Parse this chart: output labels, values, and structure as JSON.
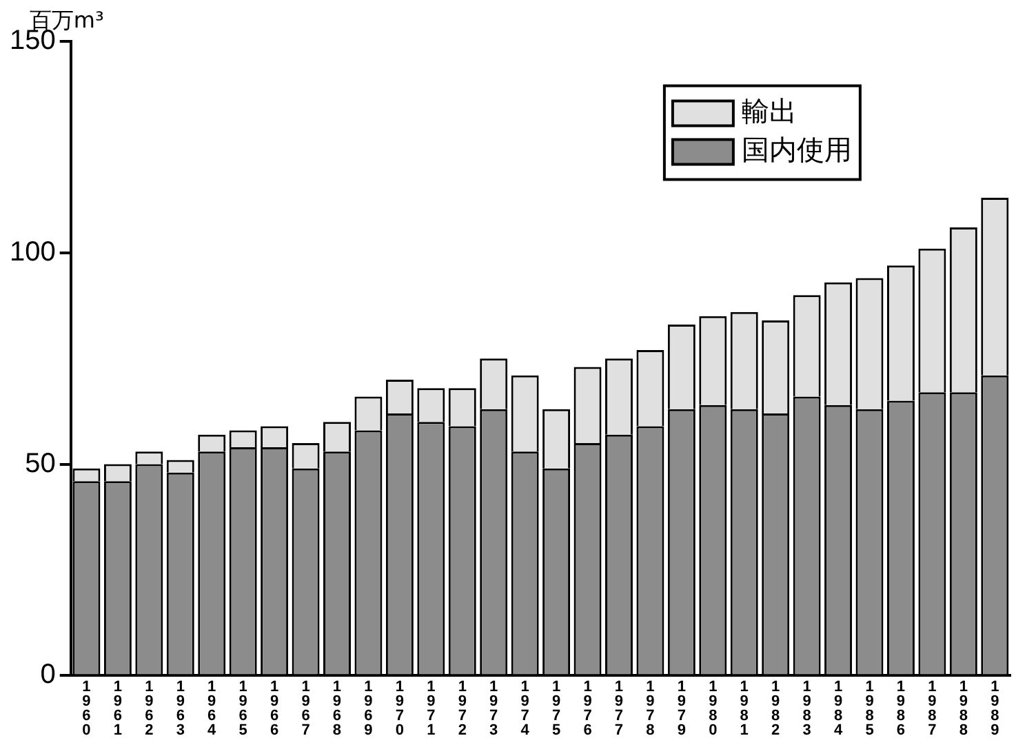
{
  "chart_data": {
    "type": "bar",
    "stacked": true,
    "ylabel": "百万m³",
    "categories": [
      "1960",
      "1961",
      "1962",
      "1963",
      "1964",
      "1965",
      "1966",
      "1967",
      "1968",
      "1969",
      "1970",
      "1971",
      "1972",
      "1973",
      "1974",
      "1975",
      "1976",
      "1977",
      "1978",
      "1979",
      "1980",
      "1981",
      "1982",
      "1983",
      "1984",
      "1985",
      "1986",
      "1987",
      "1988",
      "1989"
    ],
    "series": [
      {
        "name": "国内使用",
        "color": "#8c8c8c",
        "values": [
          46,
          46,
          50,
          48,
          53,
          54,
          54,
          49,
          53,
          58,
          62,
          60,
          59,
          63,
          53,
          49,
          55,
          57,
          59,
          63,
          64,
          63,
          62,
          66,
          64,
          63,
          65,
          67,
          67,
          71
        ]
      },
      {
        "name": "輸出",
        "color": "#e0e0e0",
        "values": [
          3,
          4,
          3,
          3,
          4,
          4,
          5,
          6,
          7,
          8,
          8,
          8,
          9,
          12,
          18,
          14,
          18,
          18,
          18,
          20,
          21,
          23,
          22,
          24,
          29,
          31,
          32,
          34,
          39,
          42
        ]
      }
    ],
    "ylim": [
      0,
      150
    ],
    "yticks": [
      0,
      50,
      100,
      150
    ],
    "grid": false,
    "legend": "top right"
  }
}
